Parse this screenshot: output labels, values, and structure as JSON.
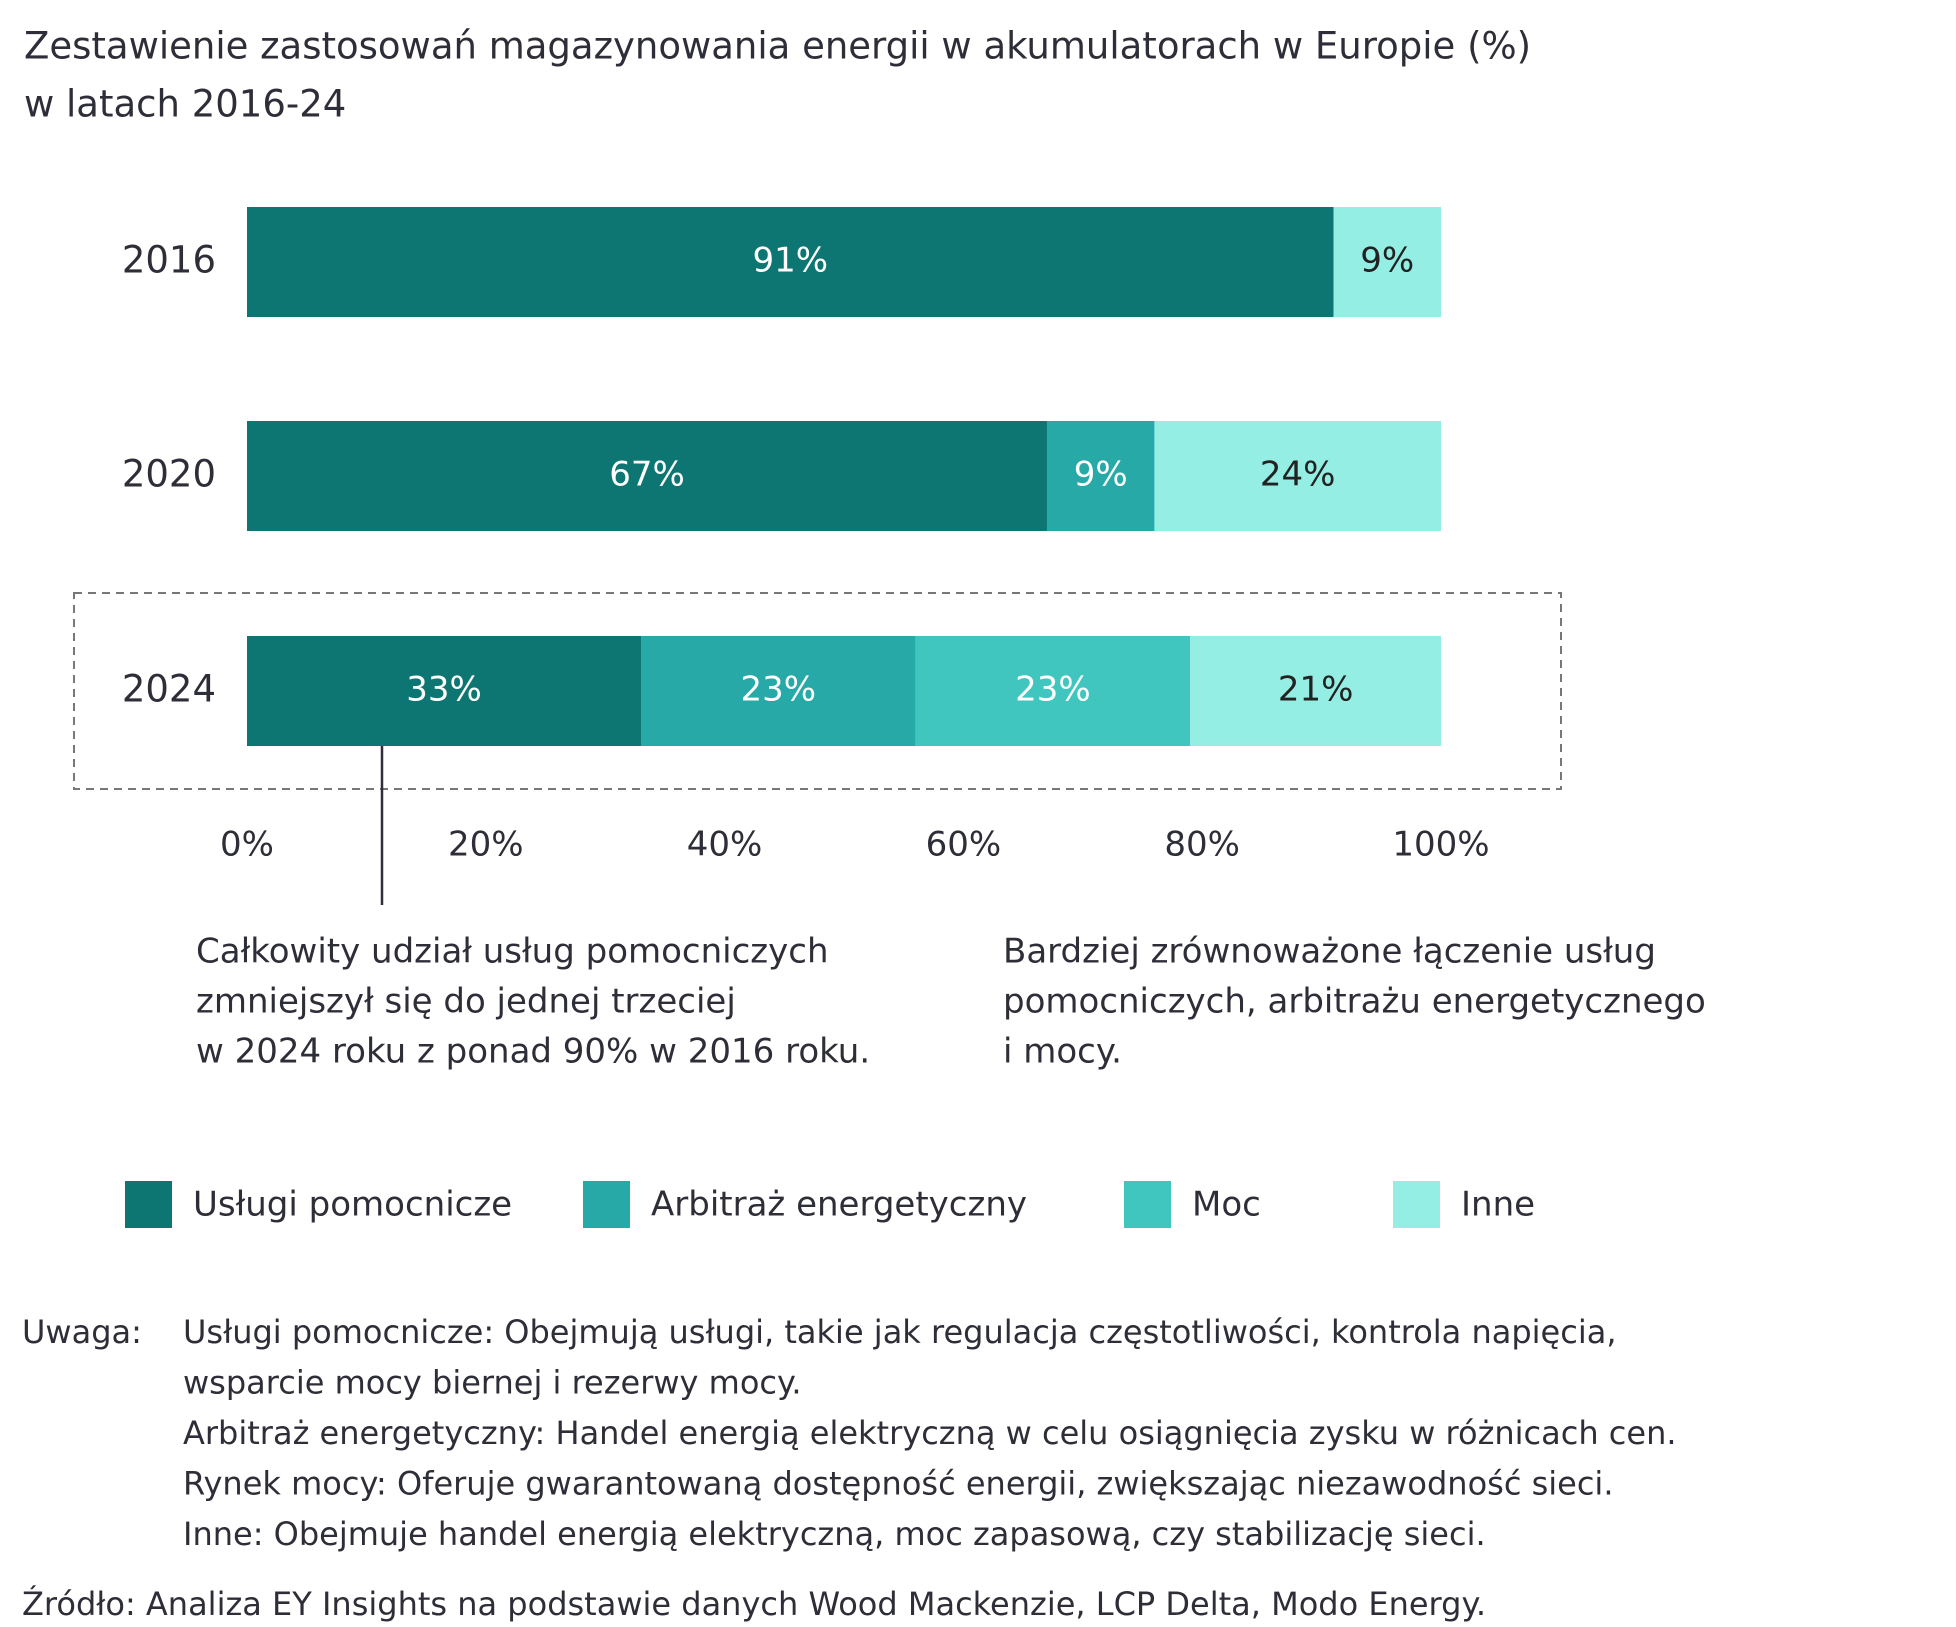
{
  "chart_data": {
    "type": "stacked-bar-horizontal",
    "title": [
      "Zestawienie zastosowań magazynowania energii w akumulatorach w Europie (%)",
      "w latach 2016-24"
    ],
    "categories": [
      "2016",
      "2020",
      "2024"
    ],
    "series": [
      {
        "name": "Usługi pomocnicze",
        "color": "#0e7672",
        "label_color": "#ffffff",
        "values": [
          91,
          67,
          33
        ],
        "value_labels": [
          "91%",
          "67%",
          "33%"
        ]
      },
      {
        "name": "Arbitraż energetyczny",
        "color": "#27a9a7",
        "label_color": "#ffffff",
        "values": [
          null,
          9,
          23
        ],
        "value_labels": [
          null,
          "9%",
          "23%"
        ]
      },
      {
        "name": "Moc",
        "color": "#40c6be",
        "label_color": "#ffffff",
        "values": [
          null,
          null,
          23
        ],
        "value_labels": [
          null,
          null,
          "23%"
        ]
      },
      {
        "name": "Inne",
        "color": "#94eee3",
        "label_color": "#222222",
        "values": [
          9,
          24,
          21
        ],
        "value_labels": [
          "9%",
          "24%",
          "21%"
        ]
      }
    ],
    "xlim": [
      0,
      100
    ],
    "xticks": [
      {
        "value": 0,
        "label": "0%"
      },
      {
        "value": 20,
        "label": "20%"
      },
      {
        "value": 40,
        "label": "40%"
      },
      {
        "value": 60,
        "label": "60%"
      },
      {
        "value": 80,
        "label": "80%"
      },
      {
        "value": 100,
        "label": "100%"
      }
    ],
    "grid": false,
    "annotations": [
      [
        "Całkowity udział usług pomocniczych",
        "zmniejszył się do jednej trzeciej",
        "w 2024 roku z ponad 90% w 2016 roku."
      ],
      [
        "Bardziej zrównoważone łączenie usług",
        "pomocniczych, arbitrażu energetycznego",
        "i mocy."
      ]
    ],
    "note_label": "Uwaga:",
    "notes": [
      "Usługi pomocnicze: Obejmują usługi, takie jak regulacja częstotliwości, kontrola napięcia,",
      "wsparcie mocy biernej i rezerwy mocy.",
      "Arbitraż energetyczny: Handel energią elektryczną w celu osiągnięcia zysku w różnicach cen.",
      "Rynek mocy: Oferuje gwarantowaną dostępność energii, zwiększając niezawodność sieci.",
      "Inne: Obejmuje handel energią elektryczną, moc zapasową, czy stabilizację sieci."
    ],
    "source": "Źródło: Analiza EY Insights na podstawie danych Wood Mackenzie, LCP Delta, Modo Energy."
  }
}
